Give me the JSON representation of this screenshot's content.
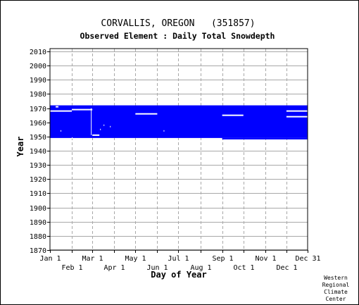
{
  "chart_data": {
    "type": "bar",
    "title": "CORVALLIS, OREGON   (351857)",
    "subtitle": "Observed Element : Daily Total Snowdepth",
    "xlabel": "Day of Year",
    "ylabel": "Year",
    "xlim": [
      1,
      366
    ],
    "ylim": [
      1870,
      2012
    ],
    "grid": true,
    "color": "#0000ff",
    "x_ticks_row1": [
      {
        "label": "Jan 1",
        "day": 1
      },
      {
        "label": "Mar 1",
        "day": 61
      },
      {
        "label": "May 1",
        "day": 122
      },
      {
        "label": "Jul 1",
        "day": 183
      },
      {
        "label": "Sep 1",
        "day": 245
      },
      {
        "label": "Nov 1",
        "day": 306
      },
      {
        "label": "Dec 31",
        "day": 366
      }
    ],
    "x_ticks_row2": [
      {
        "label": "Feb 1",
        "day": 32
      },
      {
        "label": "Apr 1",
        "day": 92
      },
      {
        "label": "Jun 1",
        "day": 153
      },
      {
        "label": "Aug 1",
        "day": 214
      },
      {
        "label": "Oct 1",
        "day": 275
      },
      {
        "label": "Dec 1",
        "day": 336
      }
    ],
    "y_ticks": [
      2010,
      2000,
      1990,
      1980,
      1970,
      1960,
      1950,
      1940,
      1930,
      1920,
      1910,
      1900,
      1890,
      1880,
      1870
    ],
    "coverage_blocks": [
      {
        "day_start": 1,
        "day_end": 366,
        "year_start": 1949,
        "year_end": 1972
      },
      {
        "day_start": 245,
        "day_end": 366,
        "year_start": 1948,
        "year_end": 1949
      }
    ],
    "missing_segments": [
      {
        "day_start": 1,
        "day_end": 32,
        "year": 1968
      },
      {
        "day_start": 32,
        "day_end": 61,
        "year": 1969
      },
      {
        "day_start": 9,
        "day_end": 13,
        "year": 1971
      },
      {
        "day_start": 122,
        "day_end": 153,
        "year": 1966
      },
      {
        "day_start": 245,
        "day_end": 275,
        "year": 1965
      },
      {
        "day_start": 336,
        "day_end": 366,
        "year": 1968
      },
      {
        "day_start": 336,
        "day_end": 366,
        "year": 1964
      },
      {
        "day_start": 61,
        "day_end": 71,
        "year": 1951
      },
      {
        "day_start": 16,
        "day_end": 17,
        "year": 1954
      },
      {
        "day_start": 77,
        "day_end": 78,
        "year": 1958
      },
      {
        "day_start": 72,
        "day_end": 73,
        "year": 1955
      },
      {
        "day_start": 86,
        "day_end": 87,
        "year": 1957
      },
      {
        "day_start": 162,
        "day_end": 163,
        "year": 1954
      },
      {
        "day_start": 32,
        "day_end": 33,
        "year": 1949
      }
    ],
    "missing_columns": [
      {
        "day": 59,
        "year_start": 1951,
        "year_end": 1970
      }
    ]
  },
  "credit": [
    "Western",
    "Regional",
    "Climate",
    "Center"
  ]
}
